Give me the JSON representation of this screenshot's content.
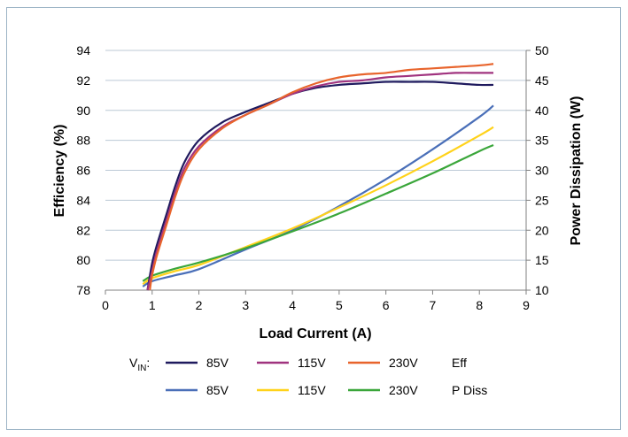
{
  "chart_data": {
    "type": "line",
    "title": "",
    "xlabel": "Load Current (A)",
    "ylabel": "Efficiency (%)",
    "y2label": "Power Dissipation (W)",
    "xlim": [
      0,
      9
    ],
    "ylim": [
      78,
      94
    ],
    "y2lim": [
      10,
      50
    ],
    "xticks": [
      "0",
      "1",
      "2",
      "3",
      "4",
      "5",
      "6",
      "7",
      "8",
      "9"
    ],
    "yticks": [
      "78",
      "80",
      "82",
      "84",
      "86",
      "88",
      "90",
      "92",
      "94"
    ],
    "y2ticks": [
      "10",
      "15",
      "20",
      "25",
      "30",
      "35",
      "40",
      "45",
      "50"
    ],
    "grid": true,
    "legend": {
      "vin_label": "V",
      "vin_sub": "IN",
      "vin_suffix": ":",
      "eff_group": "Eff",
      "pdiss_group": "P Diss"
    },
    "series": [
      {
        "name": "85V",
        "group": "Eff",
        "axis": "left",
        "color": "#1f1a5e",
        "x": [
          0.9,
          1.0,
          1.1,
          1.3,
          1.5,
          1.7,
          2.0,
          2.5,
          3.0,
          3.5,
          4.0,
          4.5,
          5.0,
          5.5,
          6.0,
          6.5,
          7.0,
          7.5,
          8.0,
          8.3
        ],
        "y": [
          78.0,
          79.8,
          81.0,
          83.0,
          85.0,
          86.6,
          88.0,
          89.2,
          89.9,
          90.5,
          91.1,
          91.5,
          91.7,
          91.8,
          91.9,
          91.9,
          91.9,
          91.8,
          91.7,
          91.7
        ]
      },
      {
        "name": "115V",
        "group": "Eff",
        "axis": "left",
        "color": "#a0337f",
        "x": [
          0.9,
          1.0,
          1.1,
          1.3,
          1.5,
          1.7,
          2.0,
          2.5,
          3.0,
          3.5,
          4.0,
          4.5,
          5.0,
          5.5,
          6.0,
          6.5,
          7.0,
          7.5,
          8.0,
          8.3
        ],
        "y": [
          78.0,
          79.3,
          80.6,
          82.6,
          84.6,
          86.2,
          87.6,
          88.9,
          89.7,
          90.4,
          91.1,
          91.6,
          91.9,
          92.0,
          92.2,
          92.3,
          92.4,
          92.5,
          92.5,
          92.5
        ]
      },
      {
        "name": "230V",
        "group": "Eff",
        "axis": "left",
        "color": "#e8642c",
        "x": [
          0.95,
          1.0,
          1.1,
          1.3,
          1.5,
          1.7,
          2.0,
          2.5,
          3.0,
          3.5,
          4.0,
          4.5,
          5.0,
          5.5,
          6.0,
          6.5,
          7.0,
          7.5,
          8.0,
          8.3
        ],
        "y": [
          78.0,
          79.0,
          80.3,
          82.3,
          84.3,
          85.9,
          87.4,
          88.8,
          89.7,
          90.4,
          91.2,
          91.8,
          92.2,
          92.4,
          92.5,
          92.7,
          92.8,
          92.9,
          93.0,
          93.1
        ]
      },
      {
        "name": "85V",
        "group": "P Diss",
        "axis": "right",
        "color": "#4a6fb8",
        "x": [
          0.8,
          1.0,
          1.5,
          2.0,
          3.0,
          4.0,
          5.0,
          6.0,
          7.0,
          8.0,
          8.3
        ],
        "y": [
          10.6,
          11.5,
          12.5,
          13.5,
          16.8,
          20.0,
          24.0,
          28.5,
          33.5,
          38.9,
          40.8
        ]
      },
      {
        "name": "115V",
        "group": "P Diss",
        "axis": "right",
        "color": "#ffd21a",
        "x": [
          0.8,
          1.0,
          1.5,
          2.0,
          3.0,
          4.0,
          5.0,
          6.0,
          7.0,
          8.0,
          8.3
        ],
        "y": [
          11.0,
          12.0,
          13.2,
          14.2,
          17.2,
          20.3,
          23.8,
          27.5,
          31.5,
          35.8,
          37.2
        ]
      },
      {
        "name": "230V",
        "group": "P Diss",
        "axis": "right",
        "color": "#3aa63a",
        "x": [
          0.8,
          1.0,
          1.5,
          2.0,
          3.0,
          4.0,
          5.0,
          6.0,
          7.0,
          8.0,
          8.3
        ],
        "y": [
          11.5,
          12.4,
          13.6,
          14.6,
          17.0,
          19.8,
          22.8,
          26.1,
          29.5,
          33.2,
          34.2
        ]
      }
    ]
  }
}
